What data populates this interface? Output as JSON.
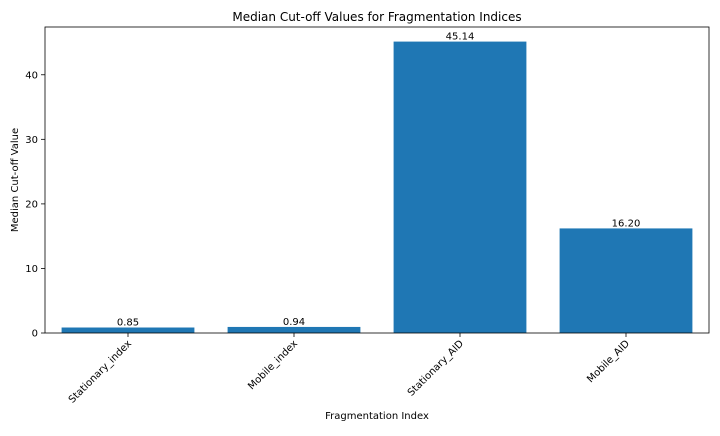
{
  "chart_data": {
    "type": "bar",
    "title": "Median Cut-off Values for Fragmentation Indices",
    "xlabel": "Fragmentation Index",
    "ylabel": "Median Cut-off Value",
    "categories": [
      "Stationary_index",
      "Mobile_index",
      "Stationary_AID",
      "Mobile_AID"
    ],
    "values": [
      0.85,
      0.94,
      45.14,
      16.2
    ],
    "value_labels": [
      "0.85",
      "0.94",
      "45.14",
      "16.20"
    ],
    "ylim": [
      0,
      47.4
    ],
    "yticks": [
      0,
      10,
      20,
      30,
      40
    ],
    "ytick_labels": [
      "0",
      "10",
      "20",
      "30",
      "40"
    ],
    "bar_color": "#1f77b4",
    "grid": false,
    "legend": "none"
  }
}
